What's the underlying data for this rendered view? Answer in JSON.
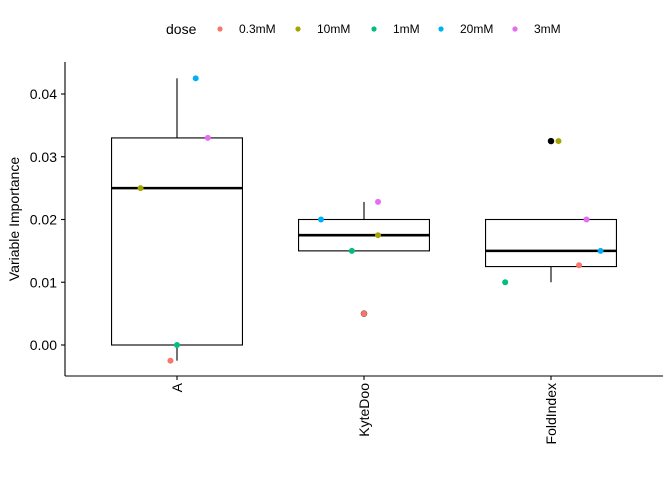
{
  "chart_data": {
    "type": "boxplot",
    "title": "",
    "xlabel": "",
    "ylabel": "Variable Importance",
    "ylim": [
      -0.005,
      0.045
    ],
    "yticks": [
      0.0,
      0.01,
      0.02,
      0.03,
      0.04
    ],
    "ytick_labels": [
      "0.00",
      "0.01",
      "0.02",
      "0.03",
      "0.04"
    ],
    "categories": [
      "A",
      "KyteDoo",
      "FoldIndex"
    ],
    "legend": {
      "title": "dose",
      "position": "top",
      "entries": [
        {
          "label": "0.3mM",
          "color": "#F8766D"
        },
        {
          "label": "10mM",
          "color": "#A3A500"
        },
        {
          "label": "1mM",
          "color": "#00BF7D"
        },
        {
          "label": "20mM",
          "color": "#00B0F6"
        },
        {
          "label": "3mM",
          "color": "#E76BF3"
        }
      ]
    },
    "boxes": [
      {
        "category": "A",
        "q1": 0.0,
        "median": 0.025,
        "q3": 0.033,
        "whisker_low": -0.0025,
        "whisker_high": 0.0425,
        "outliers": []
      },
      {
        "category": "KyteDoo",
        "q1": 0.015,
        "median": 0.0175,
        "q3": 0.02,
        "whisker_low": 0.015,
        "whisker_high": 0.0228,
        "outliers": [
          0.005
        ]
      },
      {
        "category": "FoldIndex",
        "q1": 0.0125,
        "median": 0.015,
        "q3": 0.02,
        "whisker_low": 0.01,
        "whisker_high": 0.02,
        "outliers": [
          0.0325
        ]
      }
    ],
    "points": [
      {
        "category": "A",
        "dose": "0.3mM",
        "value": -0.0025,
        "jitter": -0.07
      },
      {
        "category": "A",
        "dose": "10mM",
        "value": 0.025,
        "jitter": -0.39
      },
      {
        "category": "A",
        "dose": "1mM",
        "value": 0.0,
        "jitter": 0.0
      },
      {
        "category": "A",
        "dose": "20mM",
        "value": 0.0425,
        "jitter": 0.2
      },
      {
        "category": "A",
        "dose": "3mM",
        "value": 0.033,
        "jitter": 0.33
      },
      {
        "category": "KyteDoo",
        "dose": "0.3mM",
        "value": 0.005,
        "jitter": 0.0
      },
      {
        "category": "KyteDoo",
        "dose": "10mM",
        "value": 0.0175,
        "jitter": 0.15
      },
      {
        "category": "KyteDoo",
        "dose": "1mM",
        "value": 0.015,
        "jitter": -0.13
      },
      {
        "category": "KyteDoo",
        "dose": "20mM",
        "value": 0.02,
        "jitter": -0.46
      },
      {
        "category": "KyteDoo",
        "dose": "3mM",
        "value": 0.0228,
        "jitter": 0.15
      },
      {
        "category": "FoldIndex",
        "dose": "0.3mM",
        "value": 0.0127,
        "jitter": 0.3
      },
      {
        "category": "FoldIndex",
        "dose": "10mM",
        "value": 0.0325,
        "jitter": 0.08
      },
      {
        "category": "FoldIndex",
        "dose": "1mM",
        "value": 0.01,
        "jitter": -0.49
      },
      {
        "category": "FoldIndex",
        "dose": "20mM",
        "value": 0.015,
        "jitter": 0.53
      },
      {
        "category": "FoldIndex",
        "dose": "3mM",
        "value": 0.02,
        "jitter": 0.38
      }
    ],
    "outlier_color": "#000000"
  }
}
